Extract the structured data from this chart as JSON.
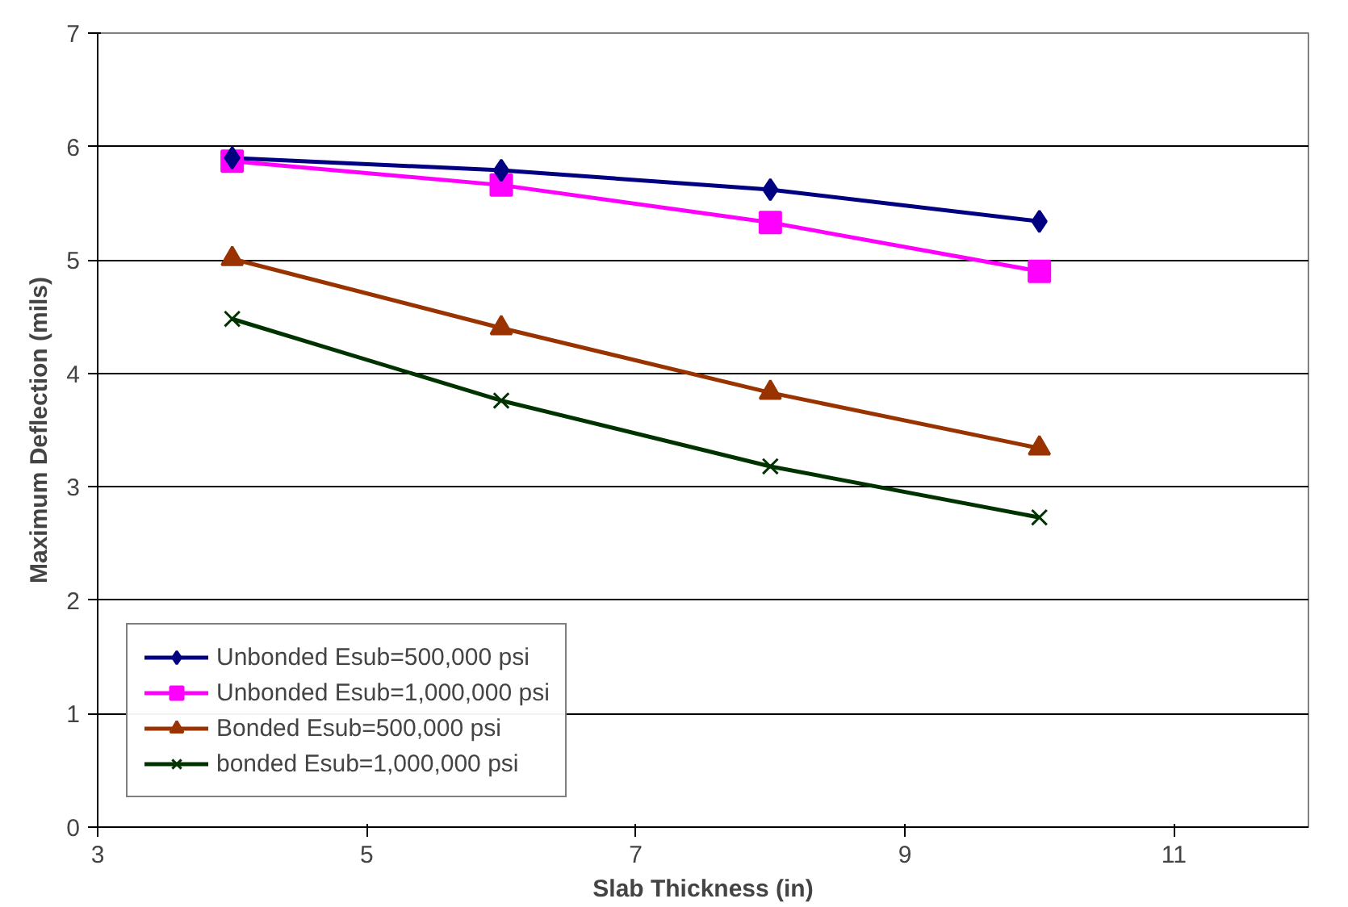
{
  "chart_data": {
    "type": "line",
    "xlabel": "Slab Thickness (in)",
    "ylabel": "Maximum Deflection (mils)",
    "x": [
      4,
      6,
      8,
      10
    ],
    "series": [
      {
        "name": "Unbonded Esub=500,000 psi",
        "color": "#000080",
        "marker": "diamond",
        "values": [
          5.9,
          5.79,
          5.62,
          5.34
        ]
      },
      {
        "name": "Unbonded Esub=1,000,000 psi",
        "color": "#ff00ff",
        "marker": "square",
        "values": [
          5.87,
          5.66,
          5.33,
          4.9
        ]
      },
      {
        "name": "Bonded Esub=500,000 psi",
        "color": "#993300",
        "marker": "triangle",
        "values": [
          5.01,
          4.4,
          3.83,
          3.34
        ]
      },
      {
        "name": "bonded Esub=1,000,000 psi",
        "color": "#003300",
        "marker": "cross",
        "values": [
          4.48,
          3.76,
          3.18,
          2.73
        ]
      }
    ],
    "xlim": [
      3,
      12
    ],
    "xticks": [
      3,
      5,
      7,
      9,
      11
    ],
    "ylim": [
      0,
      7
    ],
    "yticks": [
      0,
      1,
      2,
      3,
      4,
      5,
      6,
      7
    ],
    "grid": "y",
    "legend": "bottom left"
  }
}
